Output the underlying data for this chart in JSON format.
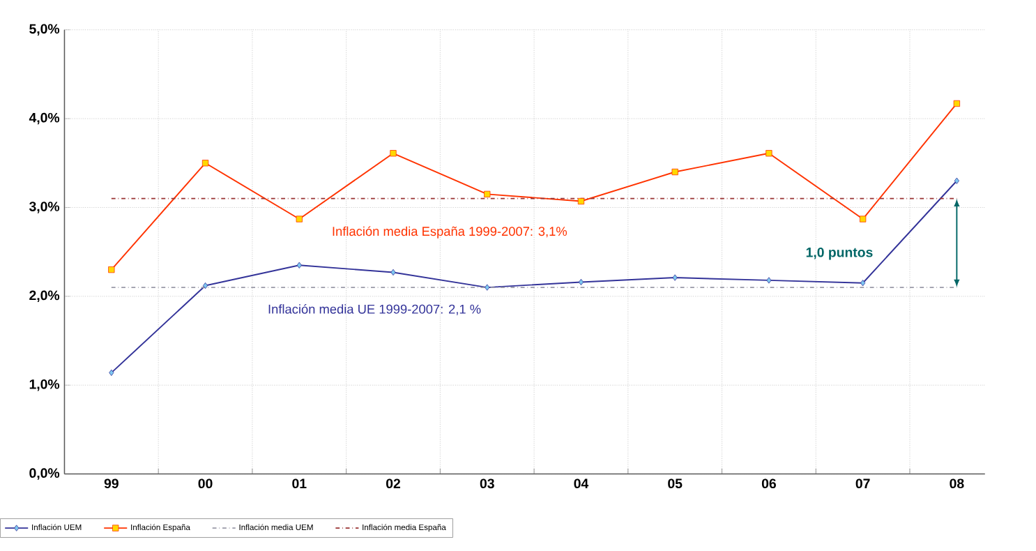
{
  "chart_data": {
    "type": "line",
    "categories": [
      "99",
      "00",
      "01",
      "02",
      "03",
      "04",
      "05",
      "06",
      "07",
      "08"
    ],
    "series": [
      {
        "name": "Inflación UEM",
        "color": "#333399",
        "marker": "diamond",
        "line_style": "solid",
        "values": [
          1.14,
          2.12,
          2.35,
          2.27,
          2.1,
          2.16,
          2.21,
          2.18,
          2.15,
          3.3
        ]
      },
      {
        "name": "Inflación España",
        "color": "#ff3300",
        "marker": "square",
        "line_style": "solid",
        "values": [
          2.3,
          3.5,
          2.87,
          3.61,
          3.15,
          3.07,
          3.4,
          3.61,
          2.87,
          4.17
        ]
      },
      {
        "name": "Inflación media UEM",
        "color": "#9a9aa8",
        "marker": "none",
        "line_style": "dashed",
        "values": [
          2.1,
          2.1,
          2.1,
          2.1,
          2.1,
          2.1,
          2.1,
          2.1,
          2.1,
          2.1
        ]
      },
      {
        "name": "Inflación media España",
        "color": "#993333",
        "marker": "none",
        "line_style": "dashed",
        "values": [
          3.1,
          3.1,
          3.1,
          3.1,
          3.1,
          3.1,
          3.1,
          3.1,
          3.1,
          3.1
        ]
      }
    ],
    "ylim": [
      0,
      5
    ],
    "yticks": [
      {
        "value": 0,
        "label": "0,0%"
      },
      {
        "value": 1,
        "label": "1,0%"
      },
      {
        "value": 2,
        "label": "2,0%"
      },
      {
        "value": 3,
        "label": "3,0%"
      },
      {
        "value": 4,
        "label": "4,0%"
      },
      {
        "value": 5,
        "label": "5,0%"
      }
    ],
    "annotations": [
      "Inflación media España 1999-2007: 3,1%",
      "Inflación media UE 1999-2007: 2,1 %",
      "1,0 puntos"
    ],
    "grid": true,
    "legend": "bottom"
  }
}
